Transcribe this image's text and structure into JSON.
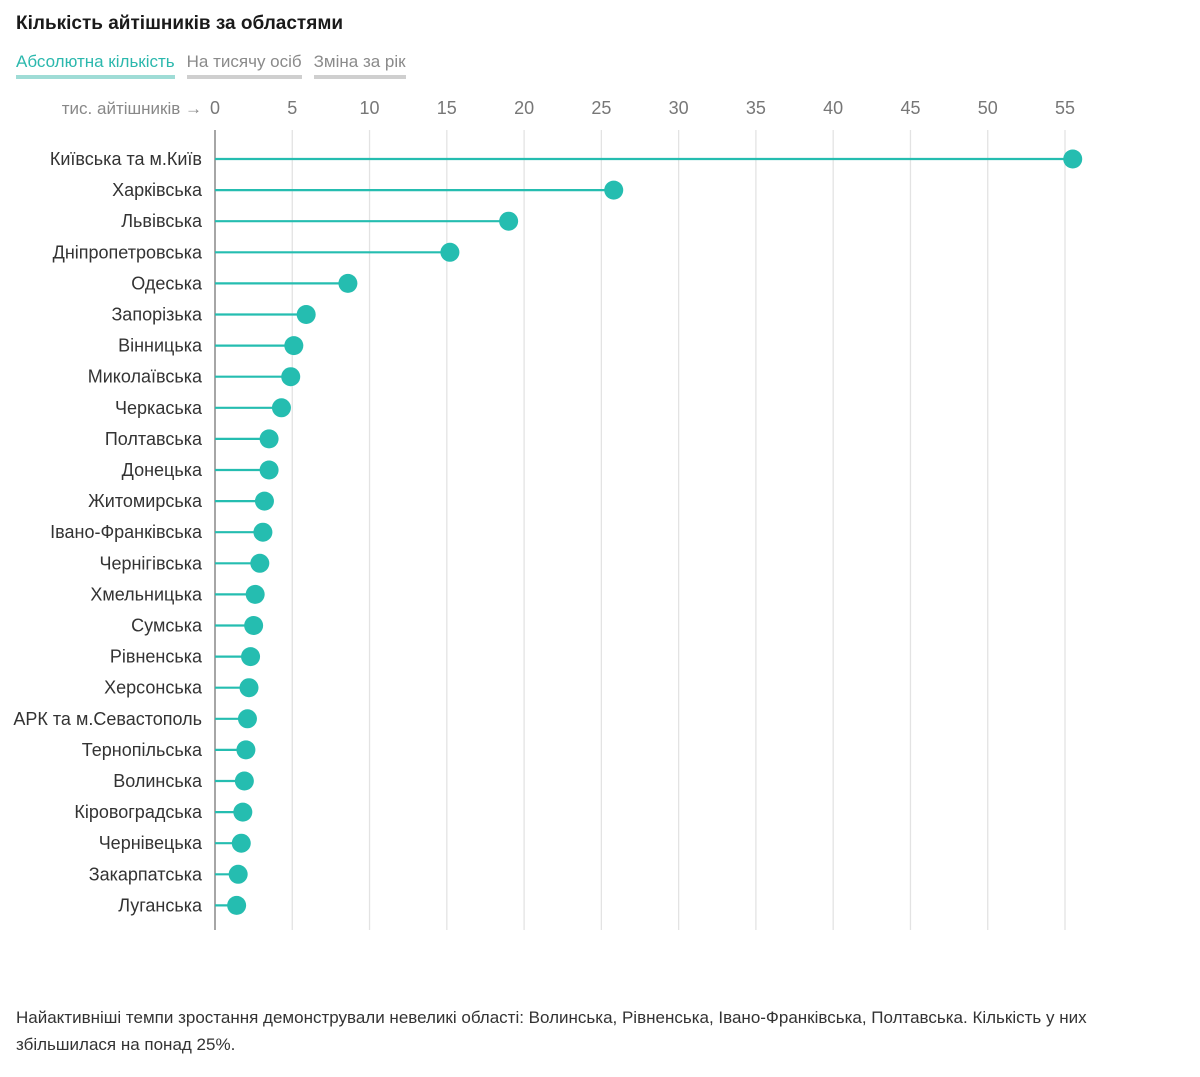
{
  "header": {
    "title": "Кількість айтішників за областями"
  },
  "tabs": [
    {
      "label": "Абсолютна кількість",
      "active": true
    },
    {
      "label": "На тисячу осіб",
      "active": false
    },
    {
      "label": "Зміна за рік",
      "active": false
    }
  ],
  "colors": {
    "accent": "#25bdb0",
    "grid": "#e3e3e3",
    "axis": "#888888",
    "text": "#333333"
  },
  "chart_data": {
    "type": "lollipop",
    "title": "Кількість айтішників за областями",
    "xlabel": "тис. айтішників →",
    "xlim": [
      0,
      55
    ],
    "xticks": [
      0,
      5,
      10,
      15,
      20,
      25,
      30,
      35,
      40,
      45,
      50,
      55
    ],
    "categories": [
      "Київська та м.Київ",
      "Харківська",
      "Львівська",
      "Дніпропетровська",
      "Одеська",
      "Запорізька",
      "Вінницька",
      "Миколаївська",
      "Черкаська",
      "Полтавська",
      "Донецька",
      "Житомирська",
      "Івано-Франківська",
      "Чернігівська",
      "Хмельницька",
      "Сумська",
      "Рівненська",
      "Херсонська",
      "АРК та м.Севастополь",
      "Тернопільська",
      "Волинська",
      "Кіровоградська",
      "Чернівецька",
      "Закарпатська",
      "Луганська"
    ],
    "values": [
      55.5,
      25.8,
      19.0,
      15.2,
      8.6,
      5.9,
      5.1,
      4.9,
      4.3,
      3.5,
      3.5,
      3.2,
      3.1,
      2.9,
      2.6,
      2.5,
      2.3,
      2.2,
      2.1,
      2.0,
      1.9,
      1.8,
      1.7,
      1.5,
      1.4
    ]
  },
  "footer": {
    "note": "Найактивніші темпи зростання демонстрували невеликі області: Волинська, Рівненська, Івано-Франківська, Полтавська. Кількість у них збільшилася на понад 25%."
  }
}
